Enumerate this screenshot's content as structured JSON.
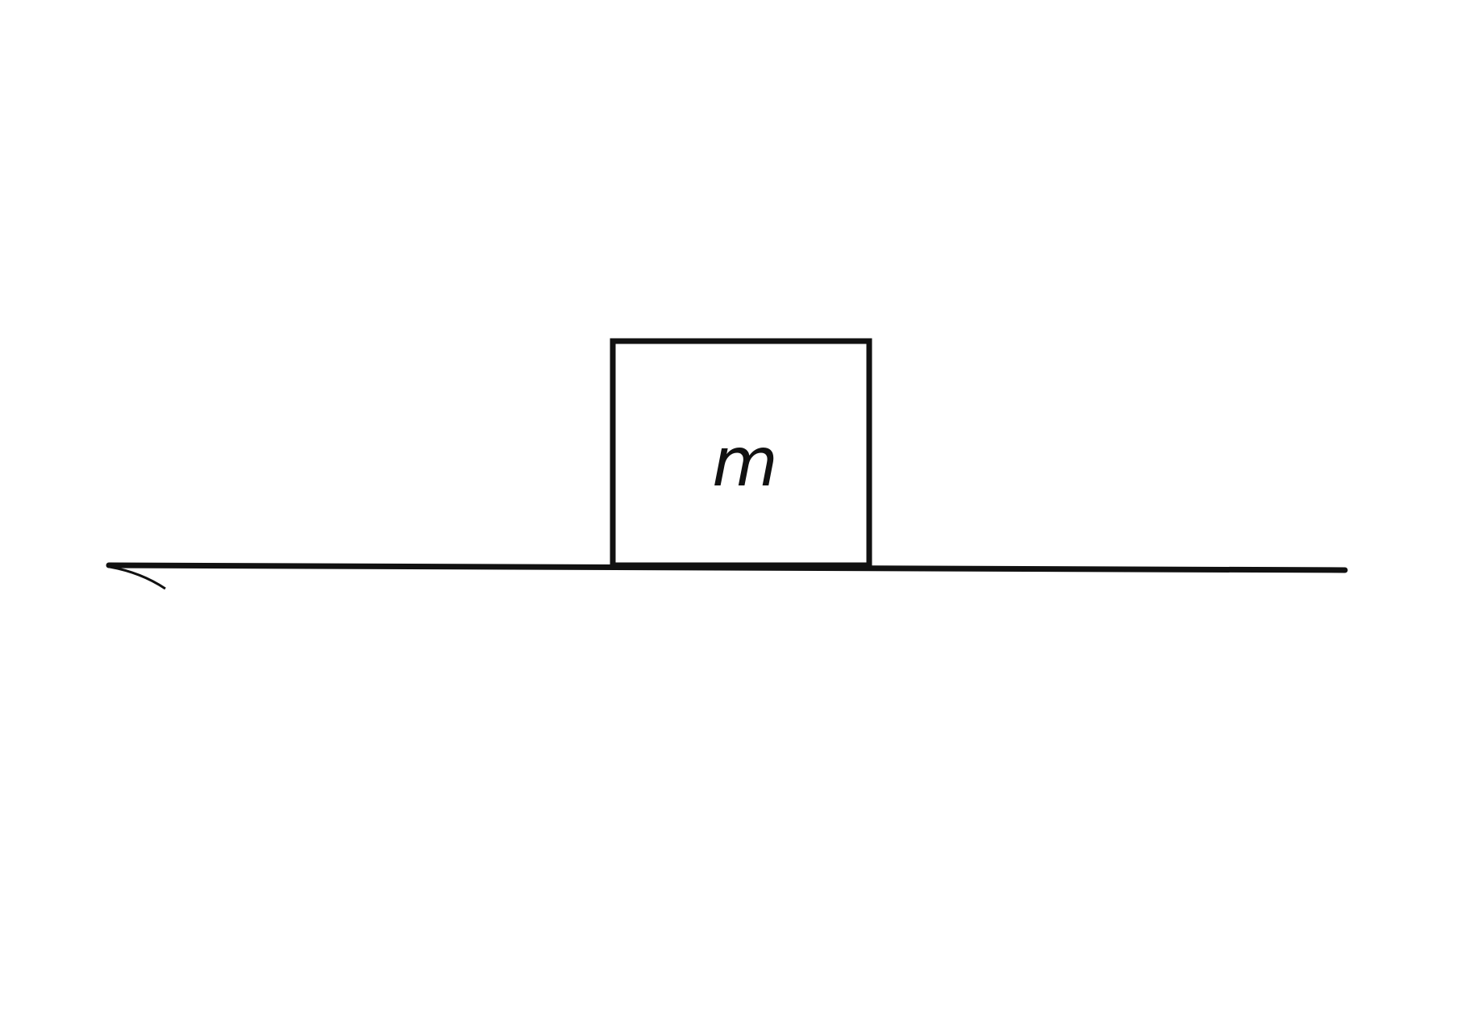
{
  "diagram": {
    "block": {
      "label": "m"
    },
    "colors": {
      "stroke": "#111111",
      "background": "#ffffff"
    }
  }
}
